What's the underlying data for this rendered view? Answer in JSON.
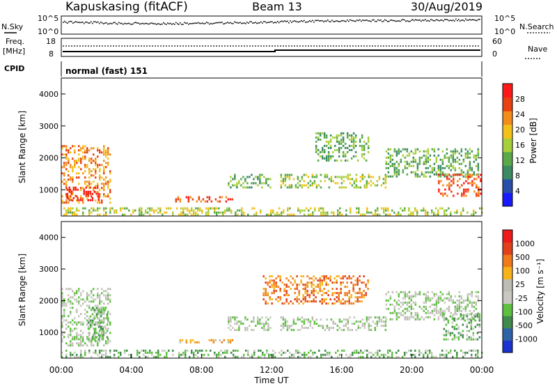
{
  "header": {
    "station": "Kapuskasing (fitACF)",
    "beam": "Beam 13",
    "date": "30/Aug/2019"
  },
  "side_labels": {
    "nsky": "N.Sky",
    "nsearch": "N.Search",
    "freq_line1": "Freq.",
    "freq_line2": "[MHz]",
    "nave": "Nave",
    "cpid": "CPID",
    "cpid_value": "normal (fast) 151"
  },
  "noise_axis": {
    "top_label": "10^5",
    "bottom_label": "10^0"
  },
  "freq_axis": {
    "left_ticks": [
      "18",
      "8"
    ],
    "right_ticks": [
      "60",
      "0"
    ]
  },
  "chart_data": [
    {
      "type": "heatmap",
      "panel": "power",
      "ylabel": "Slant Range [km]",
      "yticks": [
        "1000",
        "2000",
        "3000",
        "4000"
      ],
      "ylim": [
        180,
        4500
      ],
      "xlim": [
        0,
        24
      ],
      "colorbar_label": "Power [dB]",
      "colorbar_ticks": [
        "4",
        "8",
        "12",
        "16",
        "20",
        "24",
        "28"
      ],
      "colorscale": [
        "#1a1aff",
        "#2a4fa8",
        "#3b8a62",
        "#5aa84a",
        "#a6cf3a",
        "#f2c21a",
        "#f28c1a",
        "#e84010",
        "#ff1a1a"
      ],
      "regions": [
        {
          "t0": 0.0,
          "t1": 2.8,
          "r0": 600,
          "r1": 2400,
          "level": 6
        },
        {
          "t0": 0.3,
          "t1": 2.2,
          "r0": 650,
          "r1": 1100,
          "level": 8
        },
        {
          "t0": 6.5,
          "t1": 9.8,
          "r0": 620,
          "r1": 800,
          "level": 7
        },
        {
          "t0": 9.5,
          "t1": 12.0,
          "r0": 1100,
          "r1": 1500,
          "level": 3
        },
        {
          "t0": 12.5,
          "t1": 18.5,
          "r0": 1050,
          "r1": 1500,
          "level": 4
        },
        {
          "t0": 14.5,
          "t1": 17.5,
          "r0": 1900,
          "r1": 2800,
          "level": 3
        },
        {
          "t0": 18.5,
          "t1": 23.8,
          "r0": 1400,
          "r1": 2300,
          "level": 3
        },
        {
          "t0": 21.5,
          "t1": 23.9,
          "r0": 800,
          "r1": 1500,
          "level": 7
        },
        {
          "t0": 0.0,
          "t1": 24.0,
          "r0": 200,
          "r1": 450,
          "level": 4
        }
      ]
    },
    {
      "type": "heatmap",
      "panel": "velocity",
      "ylabel": "Slant Range [km]",
      "yticks": [
        "1000",
        "2000",
        "3000",
        "4000"
      ],
      "ylim": [
        180,
        4500
      ],
      "xlim": [
        0,
        24
      ],
      "xlabel": "Time UT",
      "xticks": [
        "00:00",
        "04:00",
        "08:00",
        "12:00",
        "16:00",
        "20:00",
        "00:00"
      ],
      "colorbar_label": "Velocity [m s⁻¹]",
      "colorbar_ticks": [
        "1000",
        "500",
        "100",
        "25",
        "-25",
        "-100",
        "-500",
        "-1000"
      ],
      "colorscale": [
        "#1a33cc",
        "#2f63a8",
        "#3f8a4c",
        "#5ec040",
        "#c8c8c0",
        "#bdbdb3",
        "#f5b21a",
        "#f07a1a",
        "#e0401a",
        "#ee1a1a"
      ],
      "regions": [
        {
          "t0": 0.0,
          "t1": 2.8,
          "r0": 600,
          "r1": 2400,
          "level": 4
        },
        {
          "t0": 1.5,
          "t1": 2.6,
          "r0": 800,
          "r1": 1800,
          "level": 3
        },
        {
          "t0": 6.5,
          "t1": 9.8,
          "r0": 650,
          "r1": 780,
          "level": 6
        },
        {
          "t0": 9.5,
          "t1": 12.0,
          "r0": 1100,
          "r1": 1500,
          "level": 4
        },
        {
          "t0": 11.5,
          "t1": 17.5,
          "r0": 1900,
          "r1": 2800,
          "level": 7
        },
        {
          "t0": 12.5,
          "t1": 18.5,
          "r0": 1050,
          "r1": 1500,
          "level": 4
        },
        {
          "t0": 18.5,
          "t1": 23.8,
          "r0": 1400,
          "r1": 2300,
          "level": 4
        },
        {
          "t0": 21.8,
          "t1": 23.9,
          "r0": 800,
          "r1": 1600,
          "level": 3
        },
        {
          "t0": 0.0,
          "t1": 24.0,
          "r0": 200,
          "r1": 450,
          "level": 3
        }
      ]
    }
  ]
}
